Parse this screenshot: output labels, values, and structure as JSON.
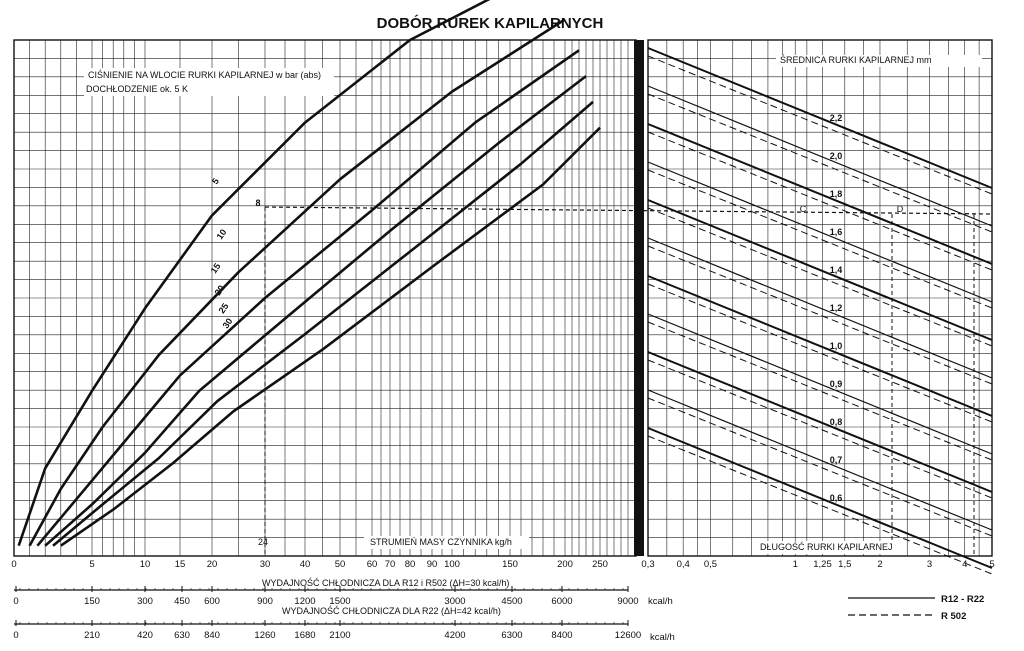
{
  "title": "DOBÓR RUREK KAPILARNYCH",
  "left_chart": {
    "label_pressure": "CIŚNIENIE NA WLOCIE RURKI KAPILARNEJ w bar (abs)",
    "label_subcool": "DOCHŁODZENIE ok. 5 K",
    "xlabel": "STRUMIEŃ MASY CZYNNIKA kg/h",
    "x_ticks": [
      "0",
      "5",
      "10",
      "15",
      "20",
      "30",
      "40",
      "50",
      "60",
      "70",
      "80",
      "90",
      "100",
      "150",
      "200",
      "250"
    ],
    "curve_labels": [
      "5",
      "10",
      "15",
      "20",
      "25",
      "30"
    ],
    "markers": [
      "8",
      "24"
    ]
  },
  "right_chart": {
    "label_diameter": "ŚREDNICA RURKI KAPILARNEJ mm",
    "xlabel": "DŁUGOŚĆ RURKI KAPILARNEJ",
    "x_ticks": [
      "0,3",
      "0,4",
      "0,5",
      "1",
      "1,25",
      "1,5",
      "2",
      "3",
      "4",
      "5"
    ],
    "diameter_labels": [
      "2,2",
      "2,0",
      "1,8",
      "1,6",
      "1,4",
      "1,2",
      "1,0",
      "0,9",
      "0,8",
      "0,7",
      "0,6"
    ],
    "markers": [
      "C",
      "D"
    ]
  },
  "scale_r12": {
    "label": "WYDAJNOŚĆ CHŁODNICZA DLA R12 i R502 (ΔH=30 kcal/h)",
    "ticks": [
      "0",
      "150",
      "300",
      "450",
      "600",
      "900",
      "1200",
      "1500",
      "3000",
      "4500",
      "6000",
      "9000"
    ],
    "unit": "kcal/h"
  },
  "scale_r22": {
    "label": "WYDAJNOŚĆ CHŁODNICZA DLA R22 (ΔH=42 kcal/h)",
    "ticks": [
      "0",
      "210",
      "420",
      "630",
      "840",
      "1260",
      "1680",
      "2100",
      "4200",
      "6300",
      "8400",
      "12600"
    ],
    "unit": "kcal/h"
  },
  "legend": {
    "r12_r22": "R12 - R22",
    "r502": "R 502"
  },
  "chart_data": {
    "type": "line",
    "title": "DOBÓR RUREK KAPILARNYCH",
    "xlabel": "STRUMIEŃ MASY CZYNNIKA kg/h",
    "ylabel": "CIŚNIENIE NA WLOCIE RURKI KAPILARNEJ w bar (abs)",
    "x_ticks": [
      0,
      5,
      10,
      15,
      20,
      30,
      40,
      50,
      60,
      70,
      80,
      90,
      100,
      150,
      200,
      250
    ],
    "series": [
      {
        "name": "5",
        "x": [
          0.3,
          2,
          5,
          10,
          20,
          40,
          80,
          150
        ],
        "y": [
          0.02,
          0.17,
          0.32,
          0.48,
          0.66,
          0.84,
          1.0,
          1.1
        ]
      },
      {
        "name": "10",
        "x": [
          1,
          3,
          6,
          12,
          25,
          50,
          100,
          200
        ],
        "y": [
          0.02,
          0.13,
          0.25,
          0.39,
          0.55,
          0.73,
          0.9,
          1.04
        ]
      },
      {
        "name": "15",
        "x": [
          1.5,
          4,
          8,
          15,
          30,
          60,
          120,
          220
        ],
        "y": [
          0.02,
          0.11,
          0.22,
          0.35,
          0.5,
          0.67,
          0.84,
          0.98
        ]
      },
      {
        "name": "20",
        "x": [
          2,
          5,
          10,
          18,
          35,
          70,
          140,
          230
        ],
        "y": [
          0.02,
          0.1,
          0.2,
          0.32,
          0.46,
          0.63,
          0.8,
          0.93
        ]
      },
      {
        "name": "25",
        "x": [
          2.5,
          6,
          12,
          21,
          40,
          80,
          160,
          240
        ],
        "y": [
          0.02,
          0.1,
          0.19,
          0.3,
          0.43,
          0.59,
          0.76,
          0.88
        ]
      },
      {
        "name": "30",
        "x": [
          3,
          7,
          14,
          24,
          45,
          90,
          180,
          250
        ],
        "y": [
          0.02,
          0.09,
          0.18,
          0.28,
          0.4,
          0.56,
          0.72,
          0.83
        ]
      }
    ]
  }
}
